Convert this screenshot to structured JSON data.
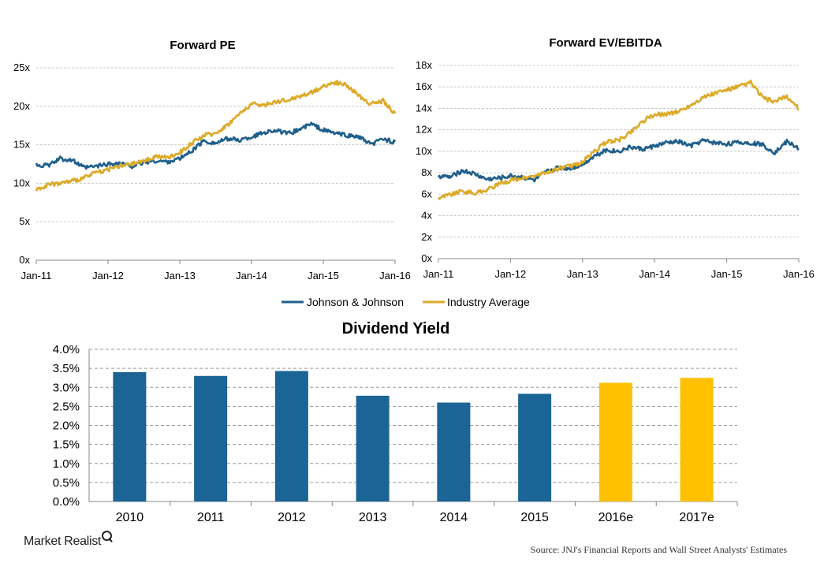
{
  "chart_data": [
    {
      "type": "line",
      "title": "Forward PE",
      "x_ticks": [
        "Jan-11",
        "Jan-12",
        "Jan-13",
        "Jan-14",
        "Jan-15",
        "Jan-16"
      ],
      "y_ticks": [
        "0x",
        "5x",
        "10x",
        "15x",
        "20x",
        "25x"
      ],
      "ylim": [
        0,
        25
      ],
      "x": [
        "Jan-11",
        "Mar-11",
        "May-11",
        "Jul-11",
        "Sep-11",
        "Nov-11",
        "Jan-12",
        "Mar-12",
        "May-12",
        "Jul-12",
        "Sep-12",
        "Nov-12",
        "Jan-13",
        "Mar-13",
        "May-13",
        "Jul-13",
        "Sep-13",
        "Nov-13",
        "Jan-14",
        "Mar-14",
        "May-14",
        "Jul-14",
        "Sep-14",
        "Nov-14",
        "Jan-15",
        "Mar-15",
        "May-15",
        "Jul-15",
        "Sep-15",
        "Nov-15",
        "Jan-16"
      ],
      "series": [
        {
          "name": "Johnson & Johnson",
          "color": "#1f5f8b",
          "values": [
            12.4,
            12.3,
            13.2,
            13.0,
            12.0,
            12.2,
            12.5,
            12.6,
            12.2,
            12.7,
            12.9,
            12.8,
            13.2,
            14.2,
            15.5,
            15.2,
            15.8,
            15.6,
            16.0,
            16.6,
            16.9,
            16.4,
            17.0,
            17.7,
            16.9,
            16.5,
            16.2,
            16.0,
            15.0,
            15.8,
            15.3
          ]
        },
        {
          "name": "Industry Average",
          "color": "#dcaa28",
          "values": [
            9.2,
            9.8,
            10.0,
            10.3,
            10.7,
            11.4,
            11.8,
            12.2,
            12.5,
            12.9,
            13.5,
            13.3,
            14.0,
            15.2,
            16.2,
            16.5,
            17.6,
            19.0,
            20.3,
            20.1,
            20.6,
            20.8,
            21.3,
            21.8,
            22.6,
            23.1,
            22.7,
            21.3,
            20.3,
            20.7,
            19.0
          ]
        }
      ]
    },
    {
      "type": "line",
      "title": "Forward EV/EBITDA",
      "x_ticks": [
        "Jan-11",
        "Jan-12",
        "Jan-13",
        "Jan-14",
        "Jan-15",
        "Jan-16"
      ],
      "y_ticks": [
        "0x",
        "2x",
        "4x",
        "6x",
        "8x",
        "10x",
        "12x",
        "14x",
        "16x",
        "18x"
      ],
      "ylim": [
        0,
        18
      ],
      "x": [
        "Jan-11",
        "Mar-11",
        "May-11",
        "Jul-11",
        "Sep-11",
        "Nov-11",
        "Jan-12",
        "Mar-12",
        "May-12",
        "Jul-12",
        "Sep-12",
        "Nov-12",
        "Jan-13",
        "Mar-13",
        "May-13",
        "Jul-13",
        "Sep-13",
        "Nov-13",
        "Jan-14",
        "Mar-14",
        "May-14",
        "Jul-14",
        "Sep-14",
        "Nov-14",
        "Jan-15",
        "Mar-15",
        "May-15",
        "Jul-15",
        "Sep-15",
        "Nov-15",
        "Jan-16"
      ],
      "series": [
        {
          "name": "Johnson & Johnson",
          "color": "#1f5f8b",
          "values": [
            7.7,
            7.6,
            8.2,
            7.9,
            7.4,
            7.5,
            7.7,
            7.6,
            7.3,
            8.1,
            8.5,
            8.4,
            8.8,
            9.6,
            10.1,
            10.0,
            10.4,
            10.2,
            10.5,
            10.8,
            10.9,
            10.5,
            11.0,
            10.8,
            10.7,
            10.8,
            10.8,
            10.6,
            9.9,
            10.9,
            10.3
          ]
        },
        {
          "name": "Industry Average",
          "color": "#dcaa28",
          "values": [
            5.7,
            6.0,
            6.3,
            6.1,
            6.4,
            6.9,
            7.3,
            7.5,
            7.7,
            8.0,
            8.4,
            8.6,
            9.0,
            10.0,
            10.9,
            11.0,
            11.8,
            12.8,
            13.4,
            13.5,
            13.7,
            14.3,
            15.0,
            15.4,
            15.7,
            16.0,
            16.4,
            15.0,
            14.6,
            15.1,
            14.0
          ]
        }
      ]
    },
    {
      "type": "bar",
      "title": "Dividend Yield",
      "categories": [
        "2010",
        "2011",
        "2012",
        "2013",
        "2014",
        "2015",
        "2016e",
        "2017e"
      ],
      "values": [
        3.4,
        3.3,
        3.43,
        2.78,
        2.6,
        2.83,
        3.12,
        3.25
      ],
      "colors": [
        "#1a6496",
        "#1a6496",
        "#1a6496",
        "#1a6496",
        "#1a6496",
        "#1a6496",
        "#ffc000",
        "#ffc000"
      ],
      "y_ticks": [
        "0.0%",
        "0.5%",
        "1.0%",
        "1.5%",
        "2.0%",
        "2.5%",
        "3.0%",
        "3.5%",
        "4.0%"
      ],
      "ylim": [
        0,
        4.0
      ],
      "grid": true
    }
  ],
  "legend": {
    "items": [
      {
        "label": "Johnson & Johnson",
        "color": "#1f5f8b"
      },
      {
        "label": "Industry Average",
        "color": "#dcaa28"
      }
    ]
  },
  "footer": {
    "brand": "Market Realist",
    "source": "Source: JNJ's Financial Reports and Wall Street Analysts' Estimates"
  }
}
